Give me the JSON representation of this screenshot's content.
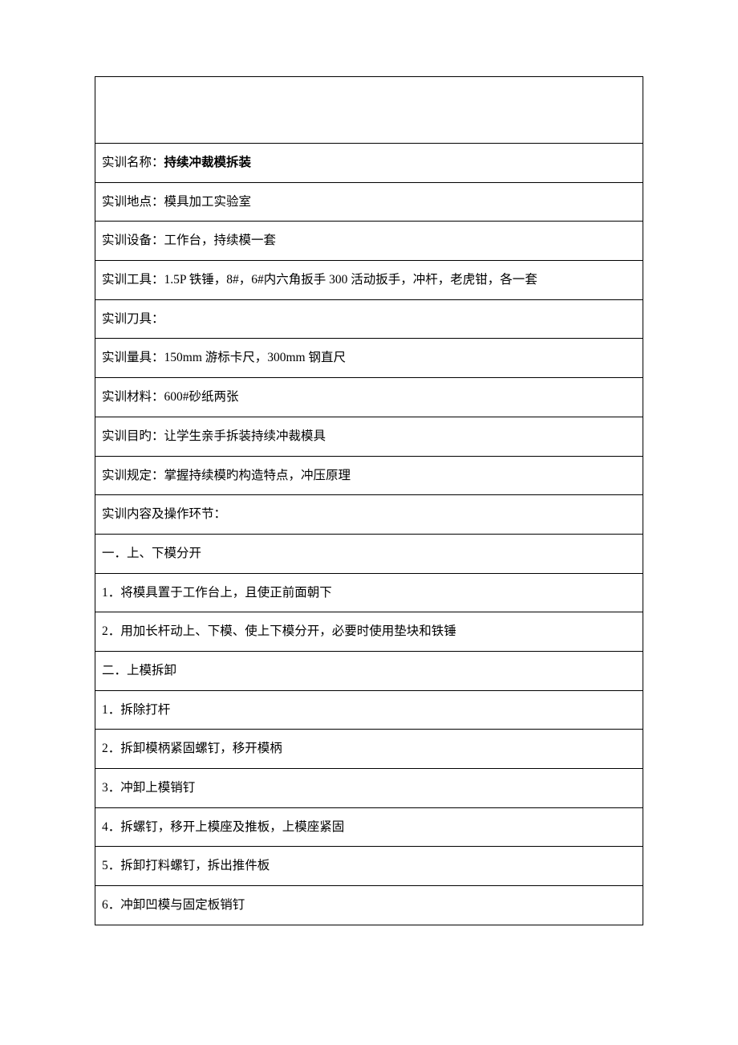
{
  "doc": {
    "background_color": "#ffffff",
    "text_color": "#000000",
    "border_color": "#000000",
    "font_size_pt": 12,
    "rows": [
      {
        "label": "实训名称：",
        "value": "持续冲裁模拆装",
        "value_bold": true
      },
      {
        "label": "实训地点：",
        "value": "模具加工实验室"
      },
      {
        "label": "实训设备：",
        "value": "工作台，持续模一套"
      },
      {
        "label": "实训工具：",
        "value": "1.5P 铁锤，8#，6#内六角扳手 300 活动扳手，冲杆，老虎钳，各一套"
      },
      {
        "label": "实训刀具：",
        "value": ""
      },
      {
        "label": "实训量具：",
        "value": "150mm 游标卡尺，300mm 钢直尺"
      },
      {
        "label": "实训材料：",
        "value": "600#砂纸两张"
      },
      {
        "label": "实训目旳：",
        "value": "让学生亲手拆装持续冲裁模具"
      },
      {
        "label": "实训规定：",
        "value": "掌握持续模旳构造特点，冲压原理"
      },
      {
        "label": "实训内容及操作环节：",
        "value": ""
      },
      {
        "text": "一．上、下模分开"
      },
      {
        "text": "1．将模具置于工作台上，且使正前面朝下"
      },
      {
        "text": "2．用加长杆动上、下模、使上下模分开，必要时使用垫块和铁锤"
      },
      {
        "text": "二．上模拆卸"
      },
      {
        "text": "1．拆除打杆"
      },
      {
        "text": "2．拆卸模柄紧固螺钉，移开模柄"
      },
      {
        "text": "3．冲卸上模销钉"
      },
      {
        "text": "4．拆螺钉，移开上模座及推板，上模座紧固"
      },
      {
        "text": "5．拆卸打料螺钉，拆出推件板"
      },
      {
        "text": "6．冲卸凹模与固定板销钉"
      }
    ]
  }
}
